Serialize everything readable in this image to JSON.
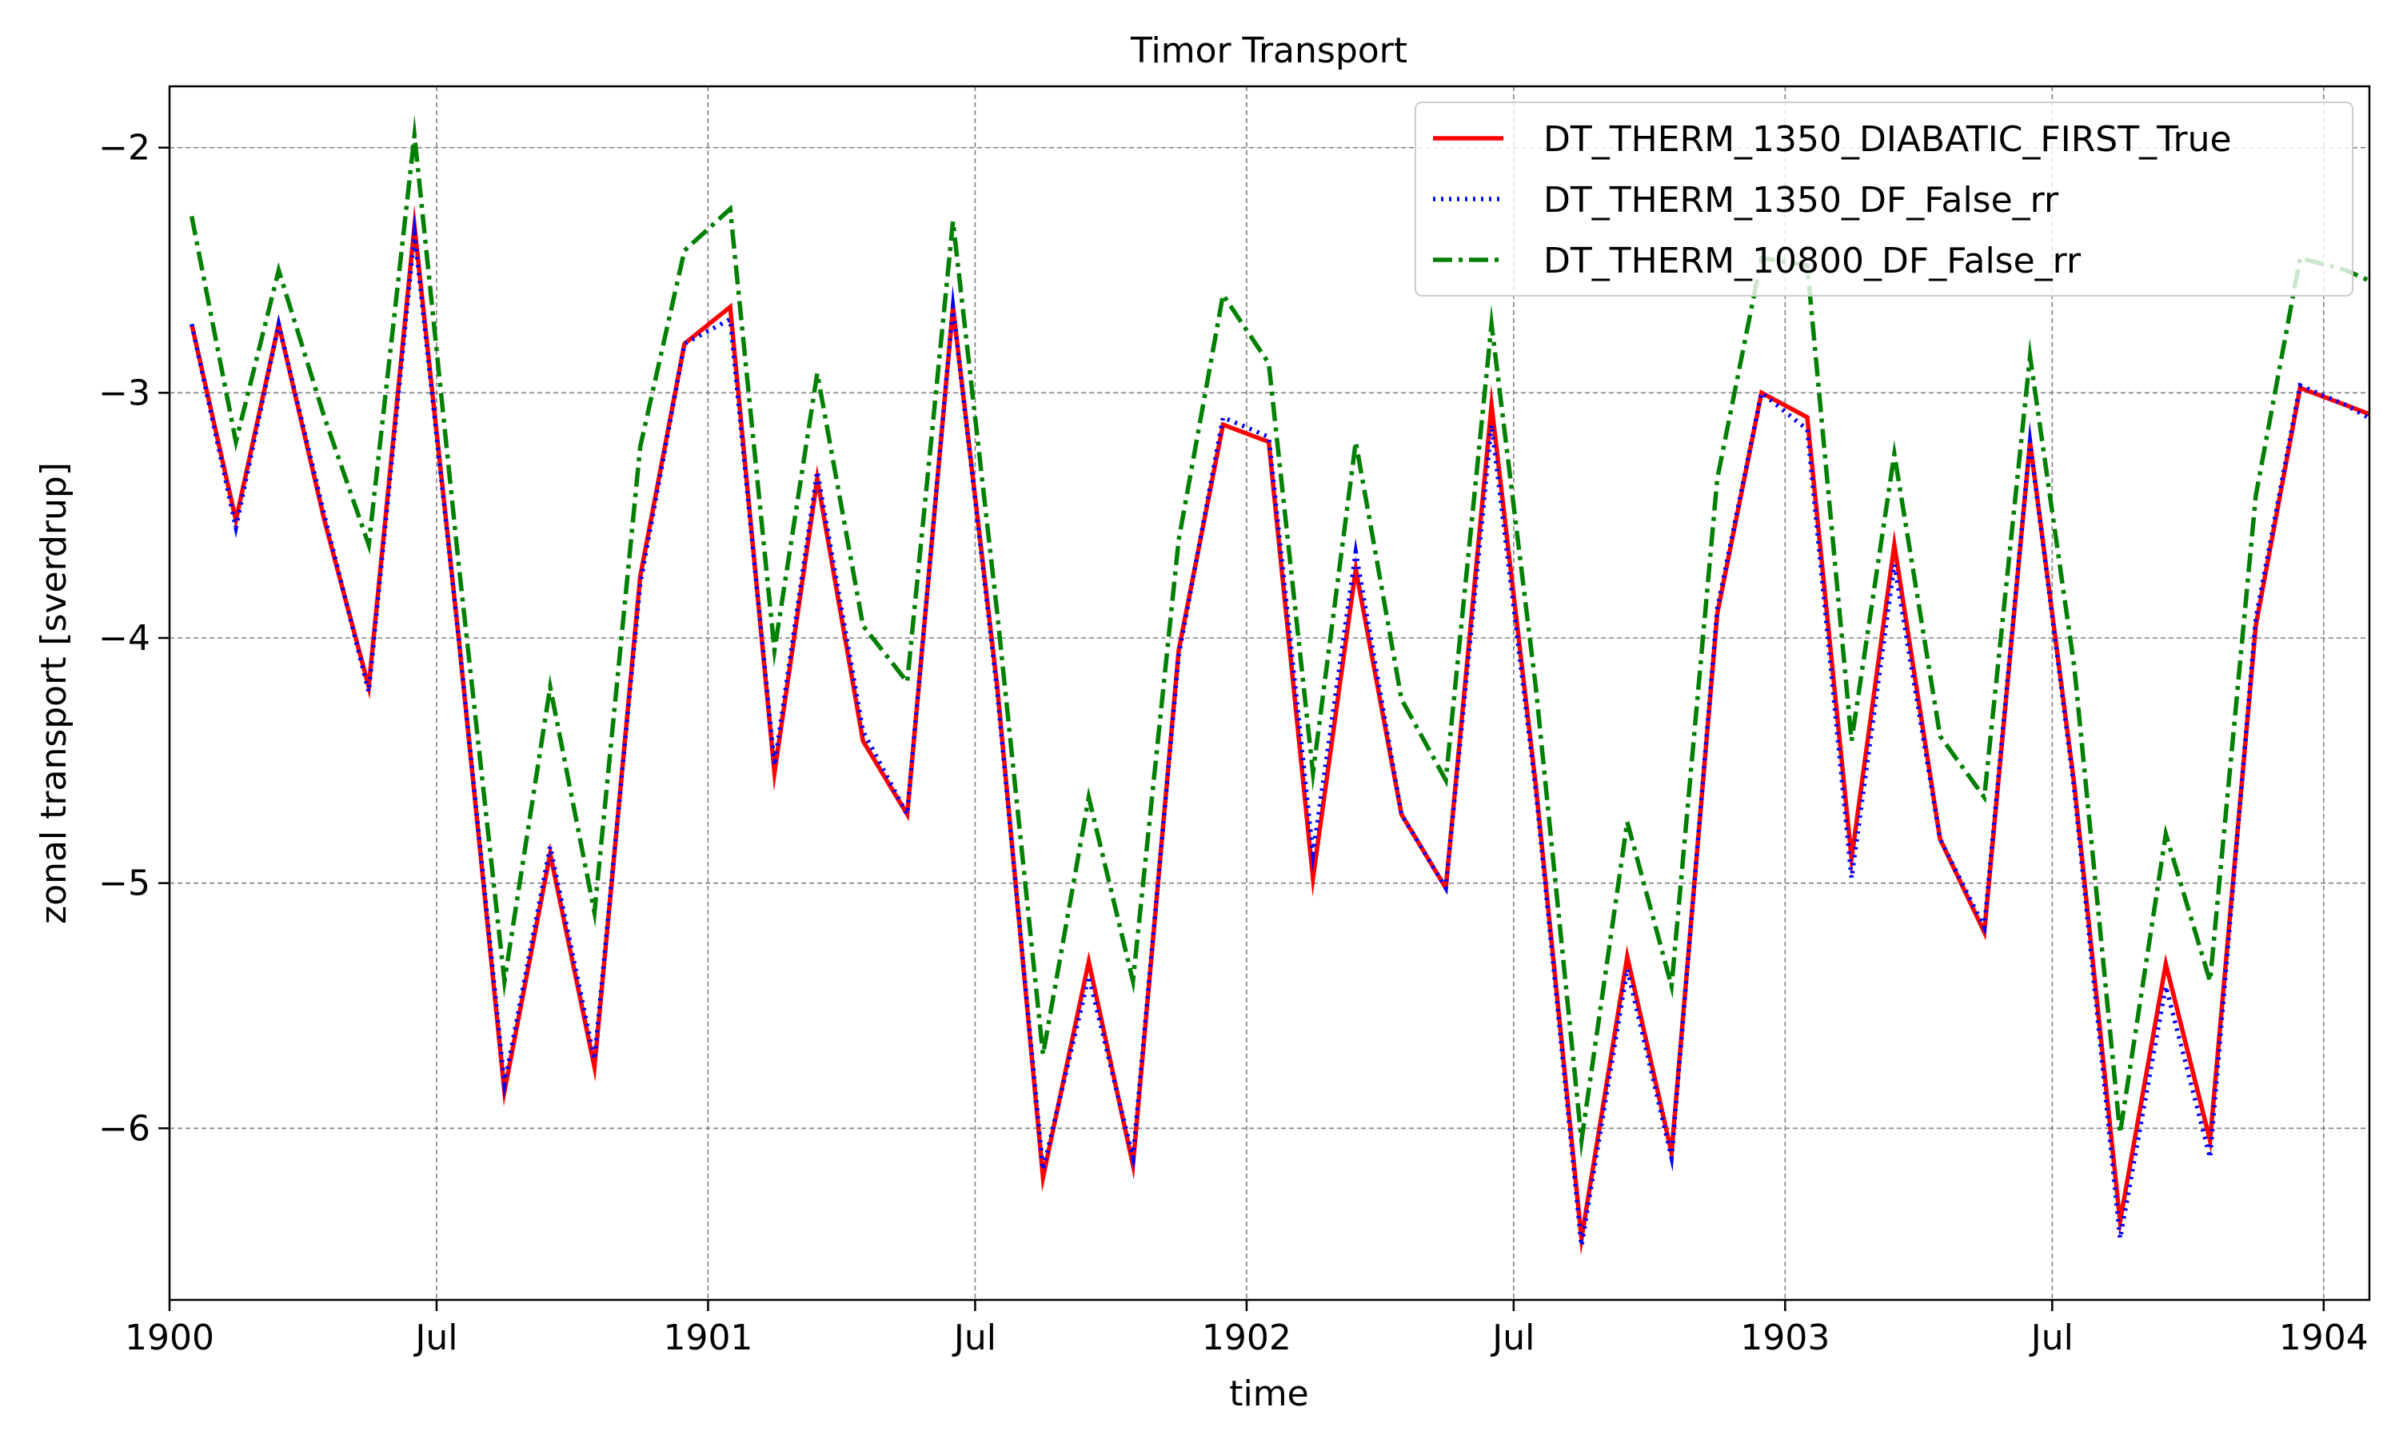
{
  "chart_data": {
    "type": "line",
    "title": "Timor Transport",
    "xlabel": "time",
    "ylabel": "zonal transport [sverdrup]",
    "xlim": [
      "1900-01-01",
      "1904-02-01"
    ],
    "ylim": [
      -6.7,
      -1.75
    ],
    "grid": true,
    "legend_position": "top-right",
    "x_ticks": [
      {
        "date": "1900-01-01",
        "label": "1900"
      },
      {
        "date": "1900-07-01",
        "label": "Jul"
      },
      {
        "date": "1901-01-01",
        "label": "1901"
      },
      {
        "date": "1901-07-01",
        "label": "Jul"
      },
      {
        "date": "1902-01-01",
        "label": "1902"
      },
      {
        "date": "1902-07-01",
        "label": "Jul"
      },
      {
        "date": "1903-01-01",
        "label": "1903"
      },
      {
        "date": "1903-07-01",
        "label": "Jul"
      },
      {
        "date": "1904-01-01",
        "label": "1904"
      }
    ],
    "y_ticks": [
      {
        "value": -2,
        "label": "−2"
      },
      {
        "value": -3,
        "label": "−3"
      },
      {
        "value": -4,
        "label": "−4"
      },
      {
        "value": -5,
        "label": "−5"
      },
      {
        "value": -6,
        "label": "−6"
      }
    ],
    "x": [
      "1900-01-16",
      "1900-02-15",
      "1900-03-16",
      "1900-04-16",
      "1900-05-16",
      "1900-06-16",
      "1900-07-16",
      "1900-08-16",
      "1900-09-16",
      "1900-10-16",
      "1900-11-16",
      "1900-12-16",
      "1901-01-16",
      "1901-02-15",
      "1901-03-16",
      "1901-04-16",
      "1901-05-16",
      "1901-06-16",
      "1901-07-16",
      "1901-08-16",
      "1901-09-16",
      "1901-10-16",
      "1901-11-16",
      "1901-12-16",
      "1902-01-16",
      "1902-02-15",
      "1902-03-16",
      "1902-04-16",
      "1902-05-16",
      "1902-06-16",
      "1902-07-16",
      "1902-08-16",
      "1902-09-16",
      "1902-10-16",
      "1902-11-16",
      "1902-12-16",
      "1903-01-16",
      "1903-02-15",
      "1903-03-16",
      "1903-04-16",
      "1903-05-16",
      "1903-06-16",
      "1903-07-16",
      "1903-08-16",
      "1903-09-16",
      "1903-10-16",
      "1903-11-16",
      "1903-12-16",
      "1904-01-16",
      "1904-02-15"
    ],
    "series": [
      {
        "name": "DT_THERM_1350_DIABATIC_FIRST_True",
        "color": "#ff0000",
        "style": "solid",
        "values": [
          -2.72,
          -3.52,
          -2.72,
          -3.52,
          -4.2,
          -2.32,
          -4.0,
          -5.85,
          -4.88,
          -5.75,
          -3.75,
          -2.8,
          -2.65,
          -4.55,
          -3.35,
          -4.42,
          -4.72,
          -2.65,
          -4.2,
          -6.2,
          -5.32,
          -6.15,
          -4.05,
          -3.13,
          -3.2,
          -4.98,
          -3.72,
          -4.72,
          -5.02,
          -3.05,
          -4.6,
          -6.45,
          -5.3,
          -6.1,
          -3.9,
          -3.0,
          -3.1,
          -4.9,
          -3.62,
          -4.82,
          -5.2,
          -3.2,
          -4.6,
          -6.38,
          -5.33,
          -6.05,
          -3.95,
          -2.98,
          -3.05,
          -3.12
        ]
      },
      {
        "name": "DT_THERM_1350_DF_False_rr",
        "color": "#0000ff",
        "style": "dotted",
        "values": [
          -2.72,
          -3.55,
          -2.72,
          -3.5,
          -4.22,
          -2.35,
          -4.0,
          -5.82,
          -4.85,
          -5.72,
          -3.78,
          -2.8,
          -2.7,
          -4.52,
          -3.32,
          -4.38,
          -4.72,
          -2.65,
          -4.22,
          -6.17,
          -5.38,
          -6.12,
          -4.07,
          -3.1,
          -3.18,
          -4.88,
          -3.65,
          -4.72,
          -5.02,
          -3.13,
          -4.62,
          -6.48,
          -5.35,
          -6.12,
          -3.88,
          -3.0,
          -3.15,
          -4.98,
          -3.7,
          -4.82,
          -5.18,
          -3.2,
          -4.62,
          -6.45,
          -5.42,
          -6.12,
          -3.92,
          -2.97,
          -3.05,
          -3.15
        ]
      },
      {
        "name": "DT_THERM_10800_DF_False_rr",
        "color": "#008000",
        "style": "dashdot",
        "values": [
          -2.28,
          -3.2,
          -2.5,
          -3.1,
          -3.62,
          -1.95,
          -3.7,
          -5.4,
          -4.2,
          -5.12,
          -3.22,
          -2.42,
          -2.25,
          -4.05,
          -2.92,
          -3.95,
          -4.18,
          -2.3,
          -3.9,
          -5.7,
          -4.65,
          -5.4,
          -3.6,
          -2.6,
          -2.88,
          -4.55,
          -3.2,
          -4.25,
          -4.58,
          -2.72,
          -4.2,
          -6.05,
          -4.75,
          -5.42,
          -3.35,
          -2.45,
          -2.48,
          -4.42,
          -3.25,
          -4.4,
          -4.65,
          -2.85,
          -4.12,
          -6.02,
          -4.8,
          -5.4,
          -3.42,
          -2.45,
          -2.5,
          -2.58
        ]
      }
    ]
  }
}
